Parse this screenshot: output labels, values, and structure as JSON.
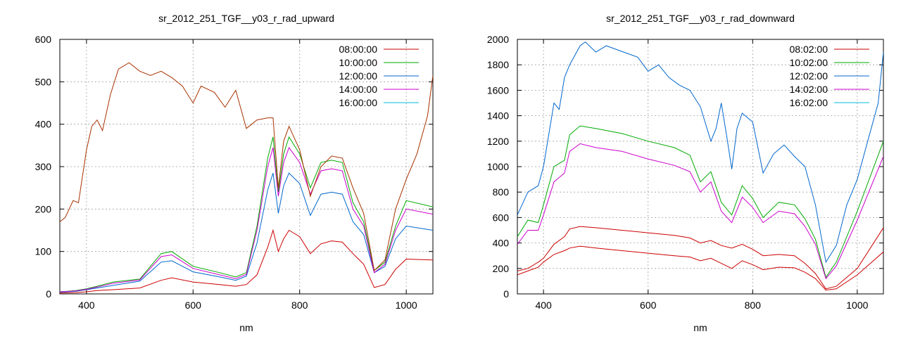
{
  "chart_data": [
    {
      "type": "line",
      "title": "sr_2012_251_TGF__y03_r_rad_upward",
      "xlabel": "nm",
      "ylabel": "",
      "xlim": [
        350,
        1050
      ],
      "ylim": [
        0,
        600
      ],
      "xticks": [
        400,
        600,
        800,
        1000
      ],
      "yticks": [
        0,
        100,
        200,
        300,
        400,
        500,
        600
      ],
      "grid": true,
      "legend": "top-right",
      "series": [
        {
          "name": "08:00:00",
          "color": "#cc0000",
          "x": [
            350,
            380,
            400,
            420,
            450,
            500,
            540,
            560,
            600,
            650,
            680,
            700,
            720,
            740,
            750,
            760,
            770,
            780,
            800,
            820,
            840,
            860,
            880,
            900,
            920,
            940,
            960,
            980,
            1000,
            1050
          ],
          "y": [
            2,
            3,
            5,
            8,
            10,
            14,
            32,
            38,
            28,
            22,
            18,
            22,
            45,
            110,
            150,
            100,
            130,
            150,
            135,
            95,
            118,
            125,
            122,
            95,
            70,
            15,
            22,
            58,
            82,
            80
          ]
        },
        {
          "name": "10:00:00",
          "color": "#00aa00",
          "x": [
            350,
            380,
            400,
            420,
            450,
            500,
            540,
            560,
            600,
            650,
            680,
            700,
            720,
            740,
            750,
            760,
            770,
            780,
            800,
            820,
            840,
            860,
            880,
            900,
            920,
            940,
            960,
            980,
            1000,
            1050
          ],
          "y": [
            5,
            8,
            12,
            18,
            28,
            35,
            95,
            100,
            65,
            50,
            40,
            50,
            160,
            320,
            370,
            240,
            330,
            370,
            330,
            250,
            310,
            315,
            310,
            215,
            170,
            55,
            75,
            160,
            220,
            205
          ]
        },
        {
          "name": "12:00:00",
          "color": "#0066cc",
          "x": [
            350,
            380,
            400,
            420,
            450,
            500,
            540,
            560,
            600,
            650,
            680,
            700,
            720,
            740,
            750,
            760,
            770,
            780,
            800,
            820,
            840,
            860,
            880,
            900,
            920,
            940,
            960,
            980,
            1000,
            1050
          ],
          "y": [
            4,
            6,
            10,
            14,
            20,
            30,
            75,
            78,
            52,
            40,
            32,
            42,
            120,
            245,
            285,
            190,
            255,
            285,
            260,
            185,
            235,
            240,
            235,
            170,
            140,
            50,
            65,
            130,
            160,
            150
          ]
        },
        {
          "name": "14:00:00",
          "color": "#cc00cc",
          "x": [
            350,
            380,
            400,
            420,
            450,
            500,
            540,
            560,
            600,
            650,
            680,
            700,
            720,
            740,
            750,
            760,
            770,
            780,
            800,
            820,
            840,
            860,
            880,
            900,
            920,
            940,
            960,
            980,
            1000,
            1050
          ],
          "y": [
            5,
            7,
            11,
            16,
            25,
            33,
            88,
            92,
            60,
            45,
            36,
            46,
            150,
            300,
            345,
            230,
            310,
            345,
            310,
            235,
            290,
            295,
            290,
            200,
            160,
            50,
            70,
            150,
            200,
            188
          ]
        },
        {
          "name": "16:00:00",
          "color": "#00bbdd",
          "x": [
            350,
            1050
          ],
          "y": [
            null,
            null
          ]
        },
        {
          "name": "",
          "color": "#a83200",
          "x": [
            350,
            360,
            375,
            385,
            400,
            410,
            420,
            430,
            445,
            460,
            480,
            500,
            520,
            540,
            560,
            580,
            600,
            615,
            640,
            660,
            680,
            700,
            720,
            740,
            750,
            760,
            770,
            780,
            800,
            820,
            840,
            860,
            880,
            900,
            920,
            940,
            960,
            980,
            1000,
            1020,
            1040,
            1050
          ],
          "y": [
            170,
            180,
            220,
            215,
            340,
            395,
            410,
            385,
            470,
            530,
            545,
            525,
            515,
            525,
            510,
            490,
            450,
            490,
            475,
            440,
            480,
            390,
            410,
            415,
            415,
            250,
            360,
            395,
            340,
            230,
            300,
            325,
            320,
            250,
            190,
            55,
            80,
            200,
            270,
            330,
            420,
            515
          ]
        }
      ]
    },
    {
      "type": "line",
      "title": "sr_2012_251_TGF__y03_r_rad_downward",
      "xlabel": "nm",
      "ylabel": "",
      "xlim": [
        350,
        1050
      ],
      "ylim": [
        0,
        2000
      ],
      "xticks": [
        400,
        600,
        800,
        1000
      ],
      "yticks": [
        0,
        200,
        400,
        600,
        800,
        1000,
        1200,
        1400,
        1600,
        1800,
        2000
      ],
      "grid": true,
      "legend": "top-right",
      "series": [
        {
          "name": "08:02:00",
          "color": "#cc0000",
          "x": [
            350,
            370,
            390,
            400,
            420,
            440,
            450,
            470,
            500,
            550,
            600,
            650,
            680,
            700,
            720,
            740,
            760,
            780,
            800,
            820,
            850,
            880,
            900,
            920,
            940,
            960,
            1000,
            1050
          ],
          "y": [
            180,
            200,
            250,
            280,
            390,
            450,
            510,
            530,
            520,
            500,
            480,
            460,
            440,
            400,
            420,
            380,
            360,
            390,
            350,
            300,
            310,
            300,
            240,
            160,
            40,
            60,
            200,
            520
          ]
        },
        {
          "name": "10:02:00",
          "color": "#00aa00",
          "x": [
            350,
            370,
            390,
            400,
            420,
            440,
            450,
            470,
            500,
            550,
            600,
            650,
            680,
            700,
            720,
            740,
            760,
            780,
            800,
            820,
            850,
            880,
            900,
            920,
            940,
            960,
            1000,
            1050
          ],
          "y": [
            450,
            580,
            560,
            700,
            1000,
            1050,
            1250,
            1320,
            1300,
            1260,
            1200,
            1150,
            1090,
            880,
            960,
            720,
            620,
            850,
            750,
            600,
            720,
            700,
            590,
            430,
            130,
            250,
            650,
            1200
          ]
        },
        {
          "name": "12:02:00",
          "color": "#0066cc",
          "x": [
            350,
            370,
            390,
            400,
            420,
            430,
            440,
            450,
            470,
            480,
            500,
            520,
            540,
            560,
            580,
            600,
            620,
            640,
            660,
            680,
            700,
            720,
            730,
            740,
            750,
            760,
            770,
            780,
            800,
            820,
            840,
            860,
            880,
            900,
            920,
            940,
            960,
            980,
            1000,
            1020,
            1040,
            1050
          ],
          "y": [
            620,
            800,
            850,
            1000,
            1500,
            1450,
            1700,
            1800,
            1950,
            1980,
            1900,
            1950,
            1920,
            1890,
            1860,
            1750,
            1800,
            1700,
            1640,
            1600,
            1470,
            1200,
            1300,
            1500,
            1250,
            980,
            1300,
            1420,
            1350,
            950,
            1100,
            1170,
            1080,
            1000,
            700,
            250,
            380,
            700,
            900,
            1200,
            1500,
            1900
          ]
        },
        {
          "name": "14:02:00",
          "color": "#cc00cc",
          "x": [
            350,
            370,
            390,
            400,
            420,
            440,
            450,
            470,
            500,
            550,
            600,
            650,
            680,
            700,
            720,
            740,
            760,
            780,
            800,
            820,
            850,
            880,
            900,
            920,
            940,
            960,
            1000,
            1050
          ],
          "y": [
            390,
            500,
            500,
            620,
            880,
            950,
            1120,
            1180,
            1150,
            1120,
            1060,
            1010,
            960,
            800,
            880,
            650,
            560,
            760,
            680,
            560,
            650,
            630,
            530,
            390,
            120,
            220,
            580,
            1080
          ]
        },
        {
          "name": "16:02:00",
          "color": "#00bbdd",
          "x": [
            350,
            1050
          ],
          "y": [
            null,
            null
          ]
        },
        {
          "name": "",
          "color": "#cc0000",
          "x": [
            350,
            370,
            390,
            400,
            420,
            440,
            450,
            470,
            500,
            550,
            600,
            650,
            680,
            700,
            720,
            740,
            760,
            780,
            800,
            820,
            850,
            880,
            900,
            920,
            940,
            960,
            1000,
            1050
          ],
          "y": [
            150,
            180,
            210,
            250,
            310,
            340,
            360,
            375,
            360,
            340,
            320,
            300,
            290,
            260,
            280,
            240,
            200,
            260,
            230,
            190,
            210,
            205,
            170,
            120,
            30,
            40,
            150,
            330
          ]
        }
      ]
    }
  ]
}
